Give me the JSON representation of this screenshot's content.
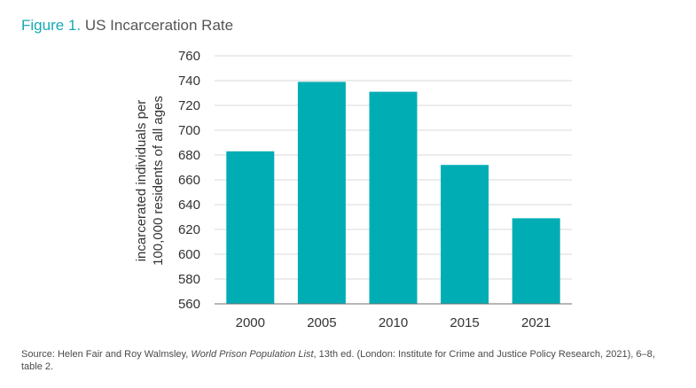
{
  "header": {
    "figure_label": "Figure 1.",
    "title": "US Incarceration Rate"
  },
  "chart_data": {
    "type": "bar",
    "categories": [
      "2000",
      "2005",
      "2010",
      "2015",
      "2021"
    ],
    "values": [
      683,
      739,
      731,
      672,
      629
    ],
    "ylabel_line1": "incarcerated individuals per",
    "ylabel_line2": "100,000 residents of all ages",
    "xlabel": "",
    "ylim": [
      560,
      760
    ],
    "yticks": [
      560,
      580,
      600,
      620,
      640,
      660,
      680,
      700,
      720,
      740,
      760
    ],
    "grid": true,
    "bar_color": "#00adb5",
    "grid_color": "#d9d9d9"
  },
  "source": {
    "prefix": "Source: Helen Fair and Roy Walmsley, ",
    "title_italic": "World Prison Population List",
    "suffix": ", 13th ed. (London: Institute for Crime and Justice Policy Research, 2021), 6–8, table 2."
  },
  "colors": {
    "accent": "#17a9b3",
    "text": "#3a3a3a"
  }
}
